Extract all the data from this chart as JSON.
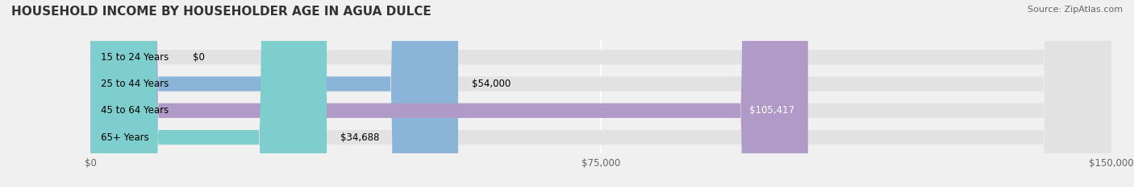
{
  "title": "HOUSEHOLD INCOME BY HOUSEHOLDER AGE IN AGUA DULCE",
  "source": "Source: ZipAtlas.com",
  "categories": [
    "15 to 24 Years",
    "25 to 44 Years",
    "45 to 64 Years",
    "65+ Years"
  ],
  "values": [
    0,
    54000,
    105417,
    34688
  ],
  "bar_colors": [
    "#f4a0a0",
    "#8ab4d8",
    "#b09ac8",
    "#7ecece"
  ],
  "background_color": "#f0f0f0",
  "bar_background_color": "#e2e2e2",
  "xlim": [
    0,
    150000
  ],
  "xticks": [
    0,
    75000,
    150000
  ],
  "xtick_labels": [
    "$0",
    "$75,000",
    "$150,000"
  ],
  "value_labels": [
    "$0",
    "$54,000",
    "$105,417",
    "$34,688"
  ],
  "title_fontsize": 11,
  "source_fontsize": 8,
  "label_fontsize": 8.5,
  "tick_fontsize": 8.5
}
